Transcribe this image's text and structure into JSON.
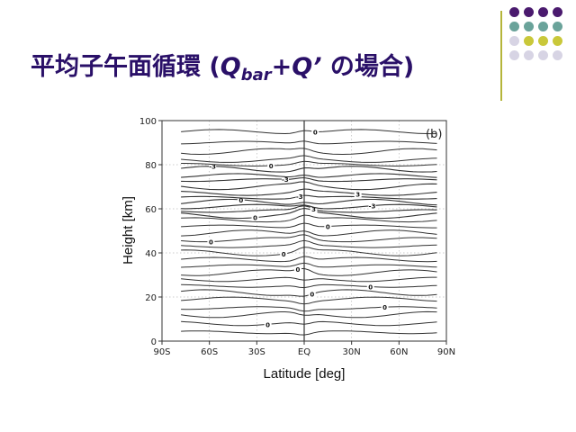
{
  "slide": {
    "title_main": "平均子午面循環 (",
    "title_q1": "Q",
    "title_sub": "bar",
    "title_plus": "+",
    "title_q2": "Q’",
    "title_tail": " の場合)",
    "title_color": "#2a1068"
  },
  "decoration": {
    "line_color": "#b5b53a",
    "dot_colors": [
      "#4a1a6e",
      "#6aa39a",
      "#c9c83a",
      "#d7d4e4"
    ]
  },
  "chart_data": {
    "type": "contour",
    "panel_label": "(b)",
    "xlabel": "Latitude [deg]",
    "ylabel": "Height [km]",
    "xlim": [
      -90,
      90
    ],
    "ylim": [
      0,
      100
    ],
    "xticks": [
      {
        "value": -90,
        "label": "90S"
      },
      {
        "value": -60,
        "label": "60S"
      },
      {
        "value": -30,
        "label": "30S"
      },
      {
        "value": 0,
        "label": "EQ"
      },
      {
        "value": 30,
        "label": "30N"
      },
      {
        "value": 60,
        "label": "60N"
      },
      {
        "value": 90,
        "label": "90N"
      }
    ],
    "yticks": [
      0,
      20,
      40,
      60,
      80,
      100
    ],
    "grid": "dotted",
    "contours": [
      {
        "height": 4
      },
      {
        "height": 8,
        "label": "0"
      },
      {
        "height": 12
      },
      {
        "height": 15,
        "label": "0"
      },
      {
        "height": 19
      },
      {
        "height": 22,
        "label": "0"
      },
      {
        "height": 25,
        "label": "0"
      },
      {
        "height": 28
      },
      {
        "height": 31,
        "label": "0"
      },
      {
        "height": 34
      },
      {
        "height": 37
      },
      {
        "height": 40,
        "label": "0"
      },
      {
        "height": 43
      },
      {
        "height": 46,
        "label": "0"
      },
      {
        "height": 49
      },
      {
        "height": 52,
        "label": "0"
      },
      {
        "height": 55
      },
      {
        "height": 57,
        "label": "0"
      },
      {
        "height": 59,
        "label": "3"
      },
      {
        "height": 61,
        "label": "-3"
      },
      {
        "height": 63,
        "label": "0"
      },
      {
        "height": 65,
        "label": "-3"
      },
      {
        "height": 67,
        "label": "3"
      },
      {
        "height": 70
      },
      {
        "height": 73,
        "label": "-3"
      },
      {
        "height": 75
      },
      {
        "height": 78,
        "label": "-3"
      },
      {
        "height": 80,
        "label": "0"
      },
      {
        "height": 82
      },
      {
        "height": 86
      },
      {
        "height": 90
      },
      {
        "height": 95,
        "label": "0"
      }
    ]
  }
}
